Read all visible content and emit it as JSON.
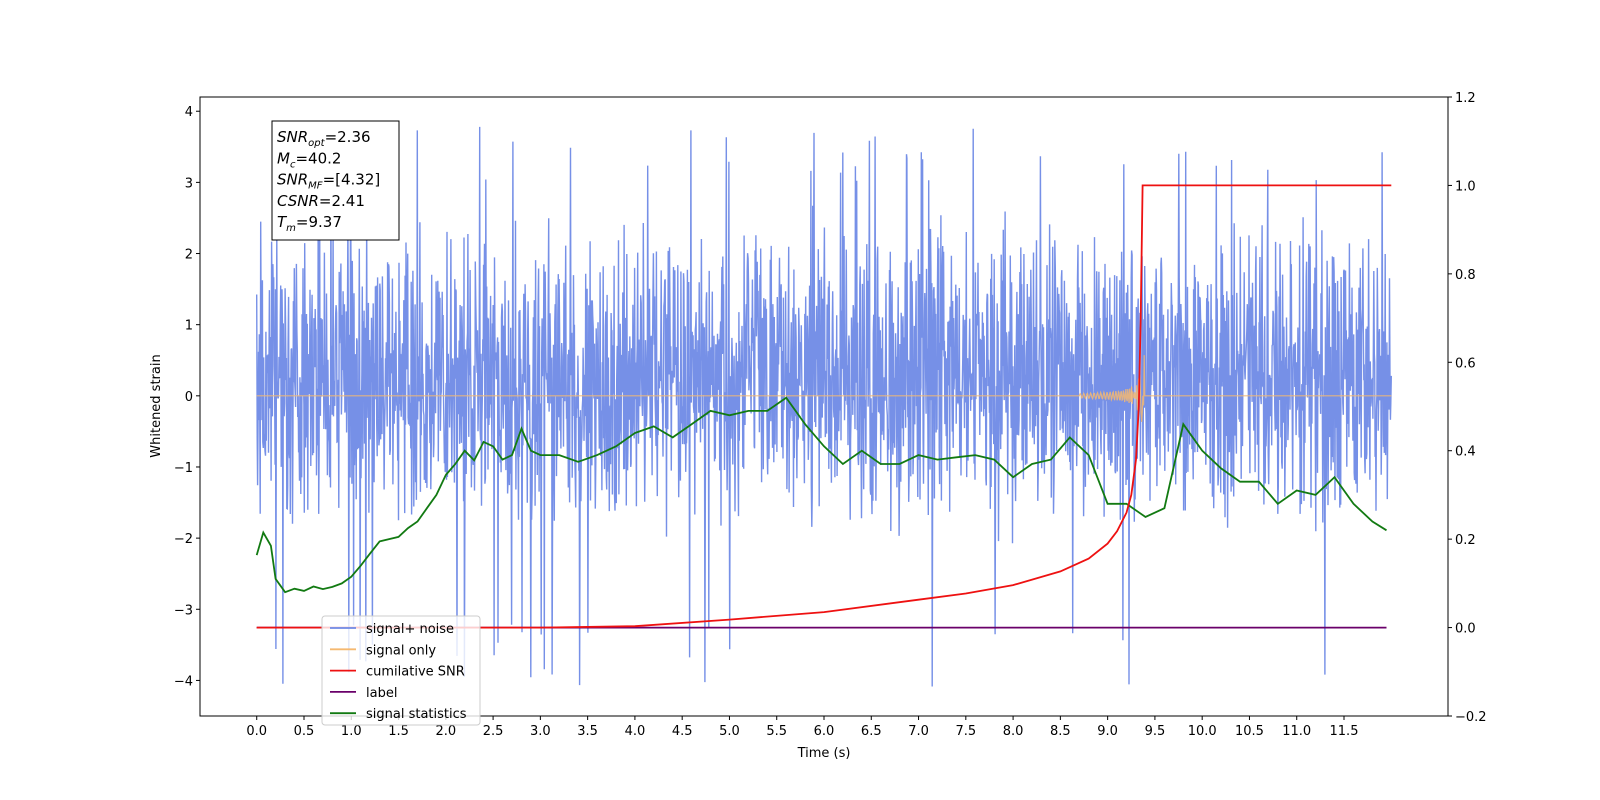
{
  "chart_data": {
    "type": "line",
    "xlabel": "Time (s)",
    "ylabel": "Whitened strain",
    "xlim": [
      -0.6,
      12.6
    ],
    "ylim": [
      -4.5,
      4.2
    ],
    "y2lim": [
      -0.2,
      1.2
    ],
    "x_ticks": [
      "0.0",
      "0.5",
      "1.0",
      "1.5",
      "2.0",
      "2.5",
      "3.0",
      "3.5",
      "4.0",
      "4.5",
      "5.0",
      "5.5",
      "6.0",
      "6.5",
      "7.0",
      "7.5",
      "8.0",
      "8.5",
      "9.0",
      "9.5",
      "10.0",
      "10.5",
      "11.0",
      "11.5"
    ],
    "y_ticks": [
      "4",
      "3",
      "2",
      "1",
      "0",
      "−1",
      "−2",
      "−3",
      "−4"
    ],
    "y2_ticks": [
      "1.2",
      "1.0",
      "0.8",
      "0.6",
      "0.4",
      "0.2",
      "0.0",
      "−0.2"
    ],
    "legend_position": "lower-left",
    "annotations": [
      {
        "name": "SNR",
        "sub": "opt",
        "value": "=2.36"
      },
      {
        "name": "M",
        "sub": "c",
        "value": "=40.2"
      },
      {
        "name": "SNR",
        "sub": "MF",
        "value": "=[4.32]"
      },
      {
        "name": "CSNR",
        "sub": "",
        "value": "=2.41"
      },
      {
        "name": "T",
        "sub": "m",
        "value": "=9.37"
      }
    ],
    "series": [
      {
        "name": "signal+ noise",
        "axis": "left",
        "color": "#6f8ae6",
        "noise_band": {
          "x_start": 0.0,
          "x_end": 12.0,
          "typical_range": [
            -2.0,
            2.5
          ],
          "extreme_range": [
            -4.1,
            3.8
          ]
        }
      },
      {
        "name": "signal only",
        "axis": "left",
        "color": "#f5b971",
        "baseline": 0.0,
        "chirp_end": 9.37,
        "chirp_peak": 0.55
      },
      {
        "name": "cumilative SNR",
        "axis": "right",
        "color": "#ee1111",
        "x": [
          0.0,
          3.0,
          4.0,
          5.0,
          6.0,
          7.0,
          7.5,
          8.0,
          8.5,
          8.8,
          9.0,
          9.1,
          9.2,
          9.25,
          9.3,
          9.33,
          9.35,
          9.37,
          9.4,
          12.0
        ],
        "y": [
          0.0,
          0.0,
          0.003,
          0.018,
          0.035,
          0.063,
          0.077,
          0.096,
          0.127,
          0.156,
          0.19,
          0.218,
          0.26,
          0.3,
          0.38,
          0.5,
          0.7,
          1.0,
          1.0,
          1.0
        ]
      },
      {
        "name": "label",
        "axis": "right",
        "color": "#6a006a",
        "x": [
          0.0,
          11.95
        ],
        "y": [
          0.0,
          0.0
        ]
      },
      {
        "name": "signal statistics",
        "axis": "right",
        "color": "#127a12",
        "x": [
          0.0,
          0.07,
          0.15,
          0.2,
          0.3,
          0.4,
          0.5,
          0.6,
          0.7,
          0.8,
          0.9,
          1.0,
          1.1,
          1.2,
          1.3,
          1.4,
          1.5,
          1.6,
          1.7,
          1.8,
          1.9,
          2.0,
          2.1,
          2.2,
          2.3,
          2.4,
          2.5,
          2.6,
          2.7,
          2.8,
          2.9,
          3.0,
          3.2,
          3.4,
          3.6,
          3.8,
          4.0,
          4.2,
          4.4,
          4.6,
          4.8,
          5.0,
          5.2,
          5.4,
          5.6,
          5.8,
          6.0,
          6.2,
          6.4,
          6.6,
          6.8,
          7.0,
          7.2,
          7.4,
          7.6,
          7.8,
          8.0,
          8.2,
          8.4,
          8.6,
          8.8,
          9.0,
          9.2,
          9.4,
          9.6,
          9.8,
          10.0,
          10.2,
          10.4,
          10.6,
          10.8,
          11.0,
          11.2,
          11.4,
          11.6,
          11.8,
          11.95
        ],
        "y": [
          0.164,
          0.215,
          0.185,
          0.11,
          0.08,
          0.088,
          0.083,
          0.093,
          0.087,
          0.092,
          0.1,
          0.115,
          0.14,
          0.168,
          0.195,
          0.2,
          0.205,
          0.225,
          0.24,
          0.27,
          0.3,
          0.345,
          0.37,
          0.4,
          0.378,
          0.42,
          0.41,
          0.38,
          0.39,
          0.45,
          0.4,
          0.39,
          0.39,
          0.375,
          0.39,
          0.41,
          0.44,
          0.455,
          0.43,
          0.46,
          0.49,
          0.48,
          0.49,
          0.49,
          0.52,
          0.46,
          0.41,
          0.37,
          0.4,
          0.37,
          0.37,
          0.39,
          0.38,
          0.385,
          0.39,
          0.38,
          0.34,
          0.37,
          0.38,
          0.43,
          0.39,
          0.28,
          0.28,
          0.25,
          0.27,
          0.46,
          0.4,
          0.36,
          0.33,
          0.33,
          0.28,
          0.31,
          0.3,
          0.34,
          0.28,
          0.24,
          0.22
        ]
      }
    ]
  }
}
